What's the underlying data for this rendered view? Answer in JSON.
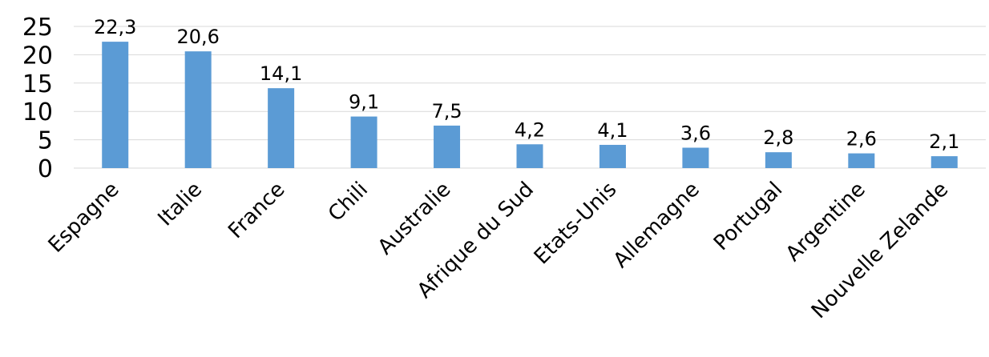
{
  "chart_data": {
    "type": "bar",
    "title": "",
    "xlabel": "",
    "ylabel": "",
    "categories": [
      "Espagne",
      "Italie",
      "France",
      "Chili",
      "Australie",
      "Afrique du Sud",
      "Etats-Unis",
      "Allemagne",
      "Portugal",
      "Argentine",
      "Nouvelle Zelande"
    ],
    "values": [
      22.3,
      20.6,
      14.1,
      9.1,
      7.5,
      4.2,
      4.1,
      3.6,
      2.8,
      2.6,
      2.1
    ],
    "data_labels": [
      "22,3",
      "20,6",
      "14,1",
      "9,1",
      "7,5",
      "4,2",
      "4,1",
      "3,6",
      "2,8",
      "2,6",
      "2,1"
    ],
    "ylim": [
      0,
      25
    ],
    "yticks": [
      0,
      5,
      10,
      15,
      20,
      25
    ],
    "ytick_labels": [
      "0",
      "5",
      "10",
      "15",
      "20",
      "25"
    ],
    "grid": true,
    "legend": "none",
    "bar_color": "#5b9bd5",
    "grid_color": "#d9d9d9"
  }
}
